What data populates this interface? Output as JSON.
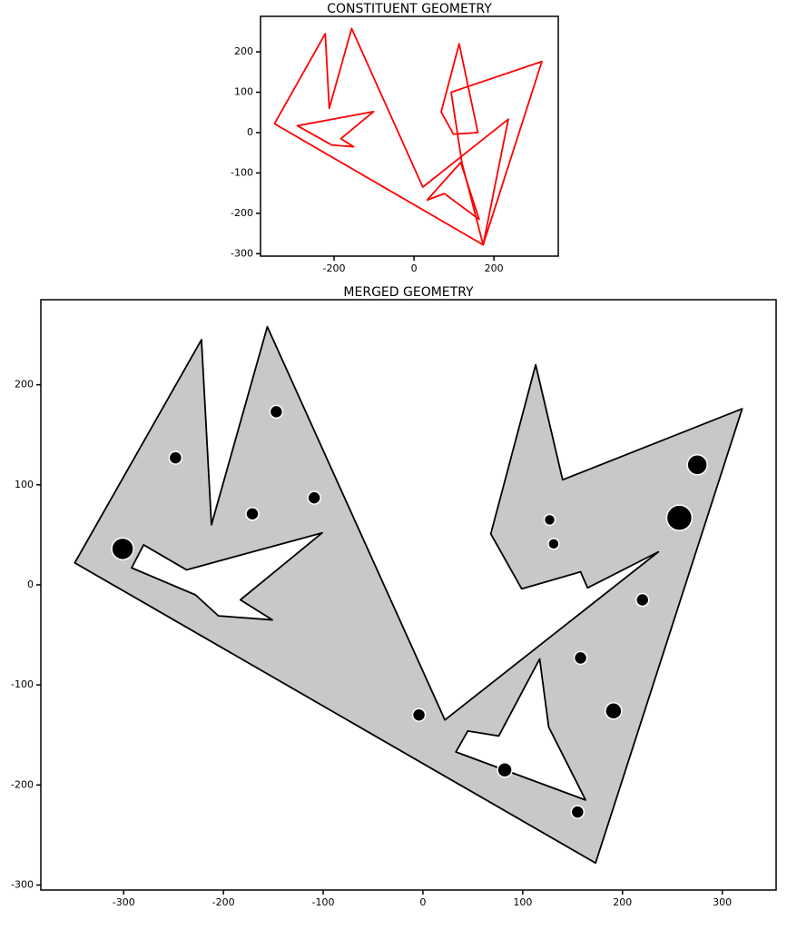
{
  "chart_data": [
    {
      "type": "polygon",
      "title": "CONSTITUENT GEOMETRY",
      "color": "#ff0000",
      "polygons": [
        [
          [
            -349,
            22
          ],
          [
            -222,
            245
          ],
          [
            -212,
            60
          ],
          [
            -156,
            258
          ],
          [
            22,
            -135
          ],
          [
            236,
            33
          ],
          [
            173,
            -278
          ]
        ],
        [
          [
            68,
            51
          ],
          [
            113,
            220
          ],
          [
            160,
            0
          ],
          [
            99,
            -4
          ]
        ],
        [
          [
            93,
            100
          ],
          [
            320,
            176
          ],
          [
            173,
            -278
          ],
          [
            120,
            -75
          ]
        ],
        [
          [
            -292,
            17
          ],
          [
            -101,
            52
          ],
          [
            -183,
            -15
          ],
          [
            -151,
            -35
          ],
          [
            -205,
            -31
          ]
        ],
        [
          [
            33,
            -167
          ],
          [
            117,
            -74
          ],
          [
            163,
            -215
          ],
          [
            76,
            -151
          ]
        ]
      ],
      "xlim": [
        -384,
        361
      ],
      "ylim": [
        -306,
        288
      ],
      "xticks": [
        -200,
        0,
        200
      ],
      "yticks": [
        -300,
        -200,
        -100,
        0,
        100,
        200
      ]
    },
    {
      "type": "polygon",
      "title": "MERGED GEOMETRY",
      "color": "#c8c8c8",
      "edge_color": "#000000",
      "polygons": [
        [
          [
            -349,
            22
          ],
          [
            -222,
            245
          ],
          [
            -212,
            60
          ],
          [
            -156,
            258
          ],
          [
            22,
            -135
          ],
          [
            236,
            33
          ],
          [
            165,
            -3
          ],
          [
            158,
            13
          ],
          [
            99,
            -4
          ],
          [
            68,
            51
          ],
          [
            113,
            220
          ],
          [
            140,
            105
          ],
          [
            320,
            176
          ],
          [
            173,
            -278
          ]
        ],
        [
          [
            -292,
            17
          ],
          [
            -280,
            40
          ],
          [
            -237,
            15
          ],
          [
            -101,
            52
          ],
          [
            -183,
            -15
          ],
          [
            -151,
            -35
          ],
          [
            -205,
            -31
          ],
          [
            -228,
            -10
          ]
        ],
        [
          [
            33,
            -167
          ],
          [
            45,
            -146
          ],
          [
            76,
            -151
          ],
          [
            117,
            -74
          ],
          [
            126,
            -142
          ],
          [
            163,
            -215
          ]
        ]
      ],
      "points": {
        "color": "#000000",
        "x": [
          -301,
          -248,
          -147,
          -171,
          -109,
          127,
          131,
          275,
          257,
          220,
          158,
          191,
          82,
          155,
          -4
        ],
        "y": [
          36,
          127,
          173,
          71,
          87,
          65,
          41,
          120,
          67,
          -15,
          -73,
          -126,
          -185,
          -227,
          -130
        ],
        "sizes": [
          12,
          7,
          7,
          7,
          7,
          6,
          6,
          11,
          14,
          7,
          7,
          9,
          8,
          7,
          7
        ]
      },
      "xlim": [
        -383,
        354
      ],
      "ylim": [
        -305,
        285
      ],
      "xticks": [
        -300,
        -200,
        -100,
        0,
        100,
        200,
        300
      ],
      "yticks": [
        -300,
        -200,
        -100,
        0,
        100,
        200
      ]
    }
  ]
}
